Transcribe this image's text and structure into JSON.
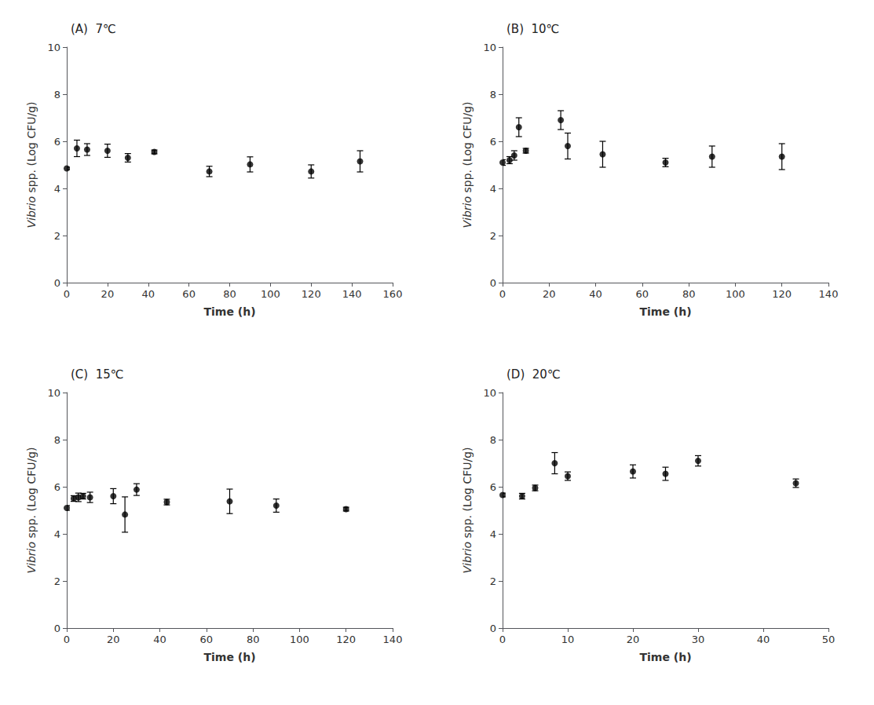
{
  "chart_data": [
    {
      "type": "scatter",
      "title": "(A)  7℃",
      "xlabel": "Time (h)",
      "ylabel": "Vibrio spp. (Log CFU/g)",
      "x": [
        0,
        5,
        10,
        20,
        30,
        43,
        70,
        90,
        120,
        144
      ],
      "values": [
        4.85,
        5.7,
        5.65,
        5.6,
        5.3,
        5.55,
        4.72,
        5.02,
        4.72,
        5.15
      ],
      "yerr": [
        0.05,
        0.35,
        0.25,
        0.28,
        0.18,
        0.08,
        0.22,
        0.32,
        0.28,
        0.45
      ],
      "xlim": [
        0,
        160
      ],
      "xticks": [
        0,
        20,
        40,
        60,
        80,
        100,
        120,
        140,
        160
      ],
      "ylim": [
        0,
        10
      ],
      "yticks": [
        0,
        2,
        4,
        6,
        8,
        10
      ],
      "color": "#000000",
      "marker": "circle",
      "grid": false
    },
    {
      "type": "scatter",
      "title": "(B)  10℃",
      "xlabel": "Time (h)",
      "ylabel": "Vibrio spp. (Log CFU/g)",
      "x": [
        0,
        3,
        5,
        7,
        10,
        25,
        28,
        43,
        70,
        90,
        120
      ],
      "values": [
        5.1,
        5.2,
        5.4,
        6.6,
        5.6,
        6.9,
        5.8,
        5.45,
        5.1,
        5.35,
        5.35
      ],
      "yerr": [
        0.12,
        0.15,
        0.2,
        0.4,
        0.1,
        0.4,
        0.55,
        0.55,
        0.18,
        0.45,
        0.55
      ],
      "xlim": [
        0,
        140
      ],
      "xticks": [
        0,
        20,
        40,
        60,
        80,
        100,
        120,
        140
      ],
      "ylim": [
        0,
        10
      ],
      "yticks": [
        0,
        2,
        4,
        6,
        8,
        10
      ],
      "color": "#000000",
      "marker": "circle",
      "grid": false
    },
    {
      "type": "scatter",
      "title": "(C)  15℃",
      "xlabel": "Time (h)",
      "ylabel": "Vibrio spp. (Log CFU/g)",
      "x": [
        0,
        3,
        5,
        7,
        10,
        20,
        25,
        30,
        43,
        70,
        90,
        120
      ],
      "values": [
        5.1,
        5.5,
        5.55,
        5.6,
        5.55,
        5.6,
        4.82,
        5.88,
        5.35,
        5.38,
        5.2,
        5.05
      ],
      "yerr": [
        0.1,
        0.12,
        0.18,
        0.12,
        0.22,
        0.32,
        0.75,
        0.25,
        0.12,
        0.52,
        0.28,
        0.08
      ],
      "xlim": [
        0,
        140
      ],
      "xticks": [
        0,
        20,
        40,
        60,
        80,
        100,
        120,
        140
      ],
      "ylim": [
        0,
        10
      ],
      "yticks": [
        0,
        2,
        4,
        6,
        8,
        10
      ],
      "color": "#000000",
      "marker": "circle",
      "grid": false
    },
    {
      "type": "scatter",
      "title": "(D)  20℃",
      "xlabel": "Time (h)",
      "ylabel": "Vibrio spp. (Log CFU/g)",
      "x": [
        0,
        3,
        5,
        8,
        10,
        20,
        25,
        30,
        45
      ],
      "values": [
        5.65,
        5.6,
        5.95,
        7.0,
        6.45,
        6.65,
        6.55,
        7.1,
        6.15
      ],
      "yerr": [
        0.08,
        0.12,
        0.12,
        0.45,
        0.18,
        0.28,
        0.28,
        0.22,
        0.18
      ],
      "xlim": [
        0,
        50
      ],
      "xticks": [
        0,
        10,
        20,
        30,
        40,
        50
      ],
      "ylim": [
        0,
        10
      ],
      "yticks": [
        0,
        2,
        4,
        6,
        8,
        10
      ],
      "color": "#000000",
      "marker": "circle",
      "grid": false
    }
  ]
}
